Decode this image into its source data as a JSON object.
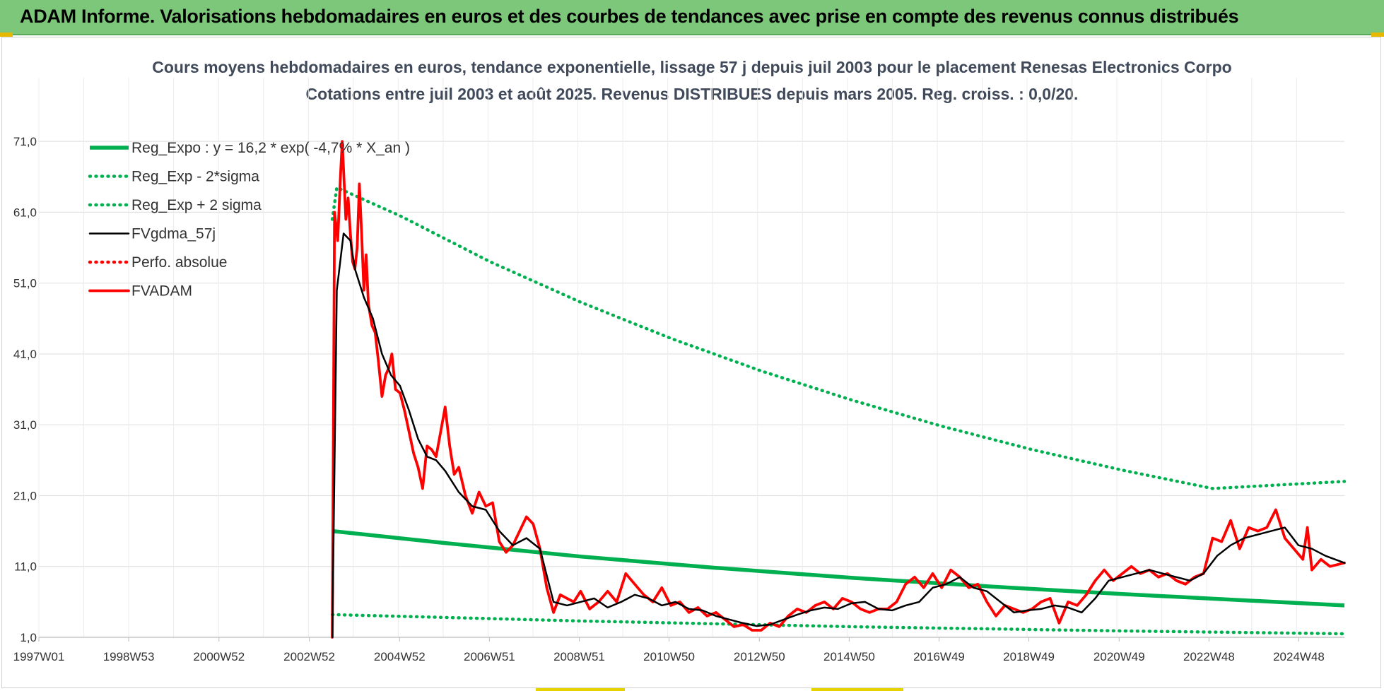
{
  "banner": {
    "title": "ADAM Informe. Valorisations hebdomadaires en euros et des courbes de tendances avec prise en compte des revenus connus distribués"
  },
  "colors": {
    "banner_bg": "#7dc77a",
    "reg_green": "#00b050",
    "fvgdma_black": "#000000",
    "fvadam_red": "#ff0000"
  },
  "chart_data": {
    "type": "line",
    "title_lines": [
      "Cours moyens hebdomadaires en euros, tendance exponentielle, lissage 57 j depuis juil 2003 pour le placement Renesas Electronics Corpo",
      "Cotations entre juil 2003 et août 2025. Revenus DISTRIBUES depuis mars 2005. Reg. croiss. : 0,0/20."
    ],
    "xlabel": "",
    "ylabel": "",
    "x_range": [
      1997.0,
      2025.92
    ],
    "ylim": [
      1.0,
      76.0
    ],
    "y_ticks": [
      1.0,
      11.0,
      21.0,
      31.0,
      41.0,
      51.0,
      61.0,
      71.0
    ],
    "y_tick_labels": [
      "1,0",
      "11,0",
      "21,0",
      "31,0",
      "41,0",
      "51,0",
      "61,0",
      "71,0"
    ],
    "x_ticks": [
      1997.0,
      1998.99,
      2000.99,
      2002.99,
      2004.99,
      2006.98,
      2008.97,
      2010.96,
      2012.96,
      2014.95,
      2016.94,
      2018.93,
      2020.93,
      2022.92,
      2024.91
    ],
    "x_tick_labels": [
      "1997W01",
      "1998W53",
      "2000W52",
      "2002W52",
      "2004W52",
      "2006W51",
      "2008W51",
      "2010W50",
      "2012W50",
      "2014W50",
      "2016W49",
      "2018W49",
      "2020W49",
      "2022W48",
      "2024W48"
    ],
    "grid": true,
    "legend_position": "top-left",
    "series": [
      {
        "name": "Reg_Expo : y = 16,2 * exp( -4,7% *  X_an )",
        "style": "solid",
        "color": "#00b050",
        "x": [
          2003.5,
          2006,
          2009,
          2012,
          2015,
          2018,
          2021,
          2025.92
        ],
        "y": [
          16.0,
          14.3,
          12.4,
          10.8,
          9.4,
          8.2,
          7.1,
          5.5
        ]
      },
      {
        "name": "Reg_Exp - 2*sigma",
        "style": "dotted",
        "color": "#00b050",
        "x": [
          2003.5,
          2006,
          2009,
          2012,
          2015,
          2018,
          2021,
          2025.92
        ],
        "y": [
          4.2,
          3.8,
          3.3,
          2.9,
          2.5,
          2.2,
          1.9,
          1.5
        ]
      },
      {
        "name": "Reg_Exp + 2 sigma",
        "style": "dotted",
        "color": "#00b050",
        "x": [
          2003.5,
          2003.6,
          2005,
          2007,
          2009,
          2011,
          2013,
          2015,
          2017,
          2019,
          2021,
          2023,
          2025.92
        ],
        "y": [
          60.0,
          64.5,
          60.5,
          54.0,
          48.3,
          43.2,
          38.6,
          34.5,
          30.8,
          27.5,
          24.6,
          22.0,
          23.0
        ]
      },
      {
        "name": "FVgdma_57j",
        "style": "solid",
        "color": "#000000",
        "x": [
          2003.5,
          2003.6,
          2003.75,
          2003.9,
          2004.0,
          2004.2,
          2004.4,
          2004.6,
          2004.8,
          2005.0,
          2005.2,
          2005.4,
          2005.6,
          2005.8,
          2006.0,
          2006.3,
          2006.6,
          2006.9,
          2007.2,
          2007.5,
          2007.8,
          2008.1,
          2008.4,
          2008.7,
          2009.0,
          2009.3,
          2009.6,
          2009.9,
          2010.2,
          2010.5,
          2010.8,
          2011.1,
          2011.4,
          2011.7,
          2012.0,
          2012.3,
          2012.6,
          2012.9,
          2013.2,
          2013.5,
          2013.8,
          2014.1,
          2014.4,
          2014.7,
          2015.0,
          2015.3,
          2015.6,
          2015.9,
          2016.2,
          2016.5,
          2016.8,
          2017.1,
          2017.4,
          2017.7,
          2018.0,
          2018.3,
          2018.6,
          2018.9,
          2019.2,
          2019.5,
          2019.8,
          2020.1,
          2020.4,
          2020.7,
          2021.0,
          2021.3,
          2021.6,
          2021.9,
          2022.2,
          2022.5,
          2022.8,
          2023.1,
          2023.4,
          2023.7,
          2024.0,
          2024.3,
          2024.6,
          2024.9,
          2025.2,
          2025.5,
          2025.92
        ],
        "y": [
          1.0,
          50.0,
          58.0,
          57.0,
          53.0,
          49.0,
          46.0,
          41.0,
          38.0,
          36.5,
          33.0,
          29.0,
          26.5,
          26.0,
          24.5,
          21.5,
          19.5,
          19.0,
          16.0,
          14.0,
          15.0,
          13.5,
          6.0,
          5.5,
          6.0,
          6.5,
          5.2,
          6.0,
          7.0,
          6.5,
          5.5,
          6.0,
          5.0,
          4.8,
          4.0,
          3.5,
          3.0,
          2.6,
          2.8,
          3.5,
          4.2,
          4.8,
          5.2,
          5.0,
          5.8,
          6.0,
          5.0,
          4.8,
          5.5,
          6.0,
          8.0,
          8.5,
          9.5,
          8.0,
          7.5,
          6.0,
          4.5,
          4.8,
          5.0,
          5.5,
          5.2,
          4.5,
          6.5,
          9.0,
          9.5,
          10.0,
          10.5,
          10.0,
          9.5,
          9.0,
          10.0,
          12.5,
          14.0,
          15.0,
          15.5,
          16.0,
          16.5,
          14.0,
          13.5,
          12.5,
          11.5
        ]
      },
      {
        "name": "Perfo. absolue",
        "style": "dotted",
        "color": "#ff0000",
        "x": [],
        "y": []
      },
      {
        "name": "FVADAM",
        "style": "solid",
        "color": "#ff0000",
        "x": [
          2003.5,
          2003.55,
          2003.62,
          2003.68,
          2003.72,
          2003.8,
          2003.85,
          2003.9,
          2003.95,
          2004.0,
          2004.05,
          2004.1,
          2004.15,
          2004.2,
          2004.25,
          2004.3,
          2004.38,
          2004.45,
          2004.52,
          2004.6,
          2004.68,
          2004.75,
          2004.82,
          2004.9,
          2005.0,
          2005.1,
          2005.2,
          2005.3,
          2005.4,
          2005.5,
          2005.6,
          2005.7,
          2005.8,
          2005.9,
          2006.0,
          2006.1,
          2006.2,
          2006.3,
          2006.45,
          2006.6,
          2006.75,
          2006.9,
          2007.05,
          2007.2,
          2007.35,
          2007.5,
          2007.65,
          2007.8,
          2007.95,
          2008.1,
          2008.25,
          2008.4,
          2008.55,
          2008.7,
          2008.85,
          2009.0,
          2009.2,
          2009.4,
          2009.6,
          2009.8,
          2010.0,
          2010.2,
          2010.4,
          2010.6,
          2010.8,
          2011.0,
          2011.2,
          2011.4,
          2011.6,
          2011.8,
          2012.0,
          2012.2,
          2012.4,
          2012.6,
          2012.8,
          2013.0,
          2013.2,
          2013.4,
          2013.6,
          2013.8,
          2014.0,
          2014.2,
          2014.4,
          2014.6,
          2014.8,
          2015.0,
          2015.2,
          2015.4,
          2015.6,
          2015.8,
          2016.0,
          2016.2,
          2016.4,
          2016.6,
          2016.8,
          2017.0,
          2017.2,
          2017.4,
          2017.6,
          2017.8,
          2018.0,
          2018.2,
          2018.4,
          2018.6,
          2018.8,
          2019.0,
          2019.2,
          2019.4,
          2019.6,
          2019.8,
          2020.0,
          2020.2,
          2020.4,
          2020.6,
          2020.8,
          2021.0,
          2021.2,
          2021.4,
          2021.6,
          2021.8,
          2022.0,
          2022.2,
          2022.4,
          2022.6,
          2022.8,
          2023.0,
          2023.2,
          2023.4,
          2023.6,
          2023.8,
          2024.0,
          2024.2,
          2024.4,
          2024.6,
          2024.8,
          2025.0,
          2025.1,
          2025.2,
          2025.4,
          2025.6,
          2025.92
        ],
        "y": [
          1.0,
          61.0,
          57.0,
          66.0,
          71.0,
          60.0,
          63.0,
          58.0,
          54.0,
          53.0,
          56.0,
          65.0,
          58.0,
          50.0,
          55.0,
          48.0,
          45.0,
          44.0,
          40.0,
          35.0,
          38.0,
          39.0,
          41.0,
          36.0,
          35.5,
          33.0,
          30.0,
          27.0,
          25.0,
          22.0,
          28.0,
          27.5,
          26.5,
          30.0,
          33.5,
          28.0,
          24.0,
          25.0,
          21.0,
          18.5,
          21.5,
          19.5,
          20.0,
          14.5,
          13.0,
          14.0,
          16.0,
          18.0,
          17.0,
          13.5,
          8.0,
          4.5,
          7.0,
          6.5,
          6.0,
          7.5,
          5.0,
          6.0,
          7.5,
          6.0,
          10.0,
          8.5,
          7.0,
          6.0,
          8.0,
          5.5,
          6.0,
          4.5,
          5.2,
          4.0,
          4.5,
          3.5,
          2.5,
          2.8,
          2.0,
          2.0,
          3.0,
          2.5,
          4.0,
          5.0,
          4.5,
          5.5,
          6.0,
          5.0,
          6.5,
          6.0,
          5.0,
          4.5,
          5.0,
          5.0,
          6.0,
          8.5,
          9.5,
          8.0,
          10.0,
          8.0,
          10.5,
          9.5,
          8.0,
          8.5,
          6.0,
          4.0,
          5.5,
          5.0,
          4.5,
          5.0,
          6.0,
          6.5,
          3.0,
          6.0,
          5.5,
          7.0,
          9.0,
          10.5,
          9.0,
          10.0,
          11.0,
          10.0,
          10.5,
          9.5,
          10.0,
          9.0,
          8.5,
          9.5,
          10.0,
          15.0,
          14.5,
          17.5,
          13.5,
          16.5,
          16.0,
          16.5,
          19.0,
          15.0,
          13.5,
          12.0,
          16.5,
          10.5,
          12.0,
          11.0,
          11.5
        ]
      }
    ]
  }
}
